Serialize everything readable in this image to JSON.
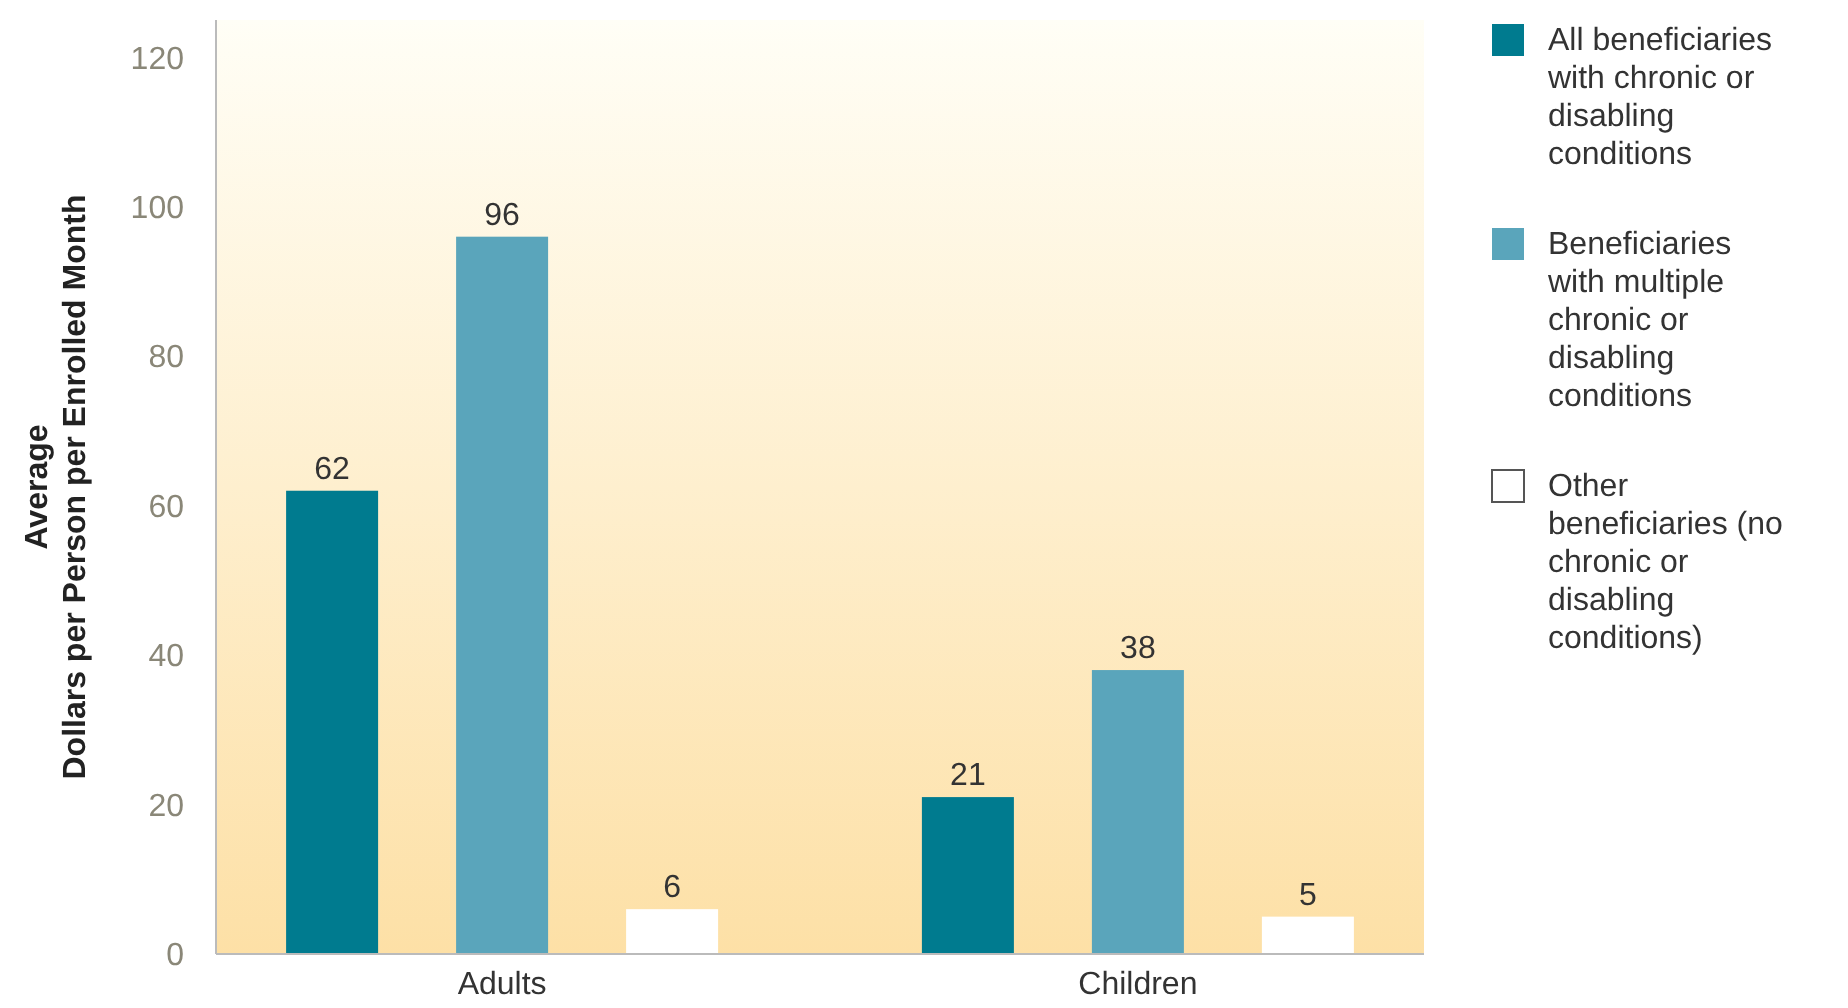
{
  "chart_data": {
    "type": "bar",
    "ylabel": "Average\nDollars per Person per Enrolled Month",
    "categories": [
      "Adults",
      "Children"
    ],
    "series": [
      {
        "name": "All beneficiaries with chronic or disabling conditions",
        "color": "#007b8f",
        "values": [
          62,
          21
        ]
      },
      {
        "name": "Beneficiaries with multiple chronic or disabling conditions",
        "color": "#5aa5bb",
        "values": [
          96,
          38
        ]
      },
      {
        "name": "Other beneficiaries (no chronic or disabling conditions)",
        "color": "#ffffff",
        "values": [
          6,
          5
        ]
      }
    ],
    "ylim": [
      0,
      125
    ],
    "yticks": [
      0,
      20,
      40,
      60,
      80,
      100,
      120
    ],
    "grid": false,
    "legend": "right",
    "data_labels": true
  }
}
